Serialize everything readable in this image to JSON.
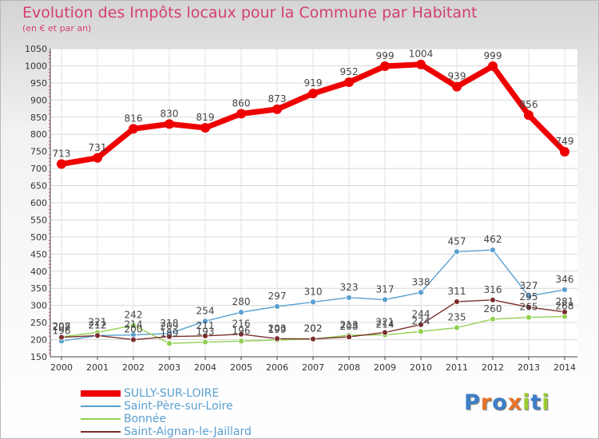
{
  "chart_data": {
    "type": "line",
    "title": "Evolution des Impôts locaux pour la Commune par Habitant",
    "subtitle": "(en € et par an)",
    "x": [
      "2000",
      "2001",
      "2002",
      "2003",
      "2004",
      "2005",
      "2006",
      "2007",
      "2008",
      "2009",
      "2010",
      "2011",
      "2012",
      "2013",
      "2014"
    ],
    "yticks": [
      150,
      200,
      250,
      300,
      350,
      400,
      450,
      500,
      550,
      600,
      650,
      700,
      750,
      800,
      850,
      900,
      950,
      1000,
      1050
    ],
    "ylim": [
      150,
      1050
    ],
    "grid": true,
    "series": [
      {
        "name": "SULLY-SUR-LOIRE",
        "color": "#ee0000",
        "values": [
          713,
          731,
          816,
          830,
          819,
          860,
          873,
          919,
          952,
          999,
          1004,
          939,
          999,
          856,
          749
        ],
        "labels": [
          "713",
          "731",
          "816",
          "830",
          "819",
          "860",
          "873",
          "919",
          "952",
          "999",
          "1004",
          "939",
          "999",
          "856",
          "749"
        ]
      },
      {
        "name": "Saint-Père-sur-Loire",
        "color": "#5a9fd0",
        "values": [
          196,
          212,
          214,
          218,
          254,
          280,
          297,
          310,
          323,
          317,
          338,
          457,
          462,
          327,
          346
        ],
        "labels": [
          "196",
          "212",
          "214",
          "218",
          "254",
          "280",
          "297",
          "310",
          "323",
          "317",
          "338",
          "457",
          "462",
          "327",
          "346"
        ]
      },
      {
        "name": "Bonnée",
        "color": "#92d050",
        "values": [
          208,
          221,
          242,
          189,
          193,
          196,
          199,
          202,
          213,
          214,
          224,
          235,
          260,
          265,
          268
        ],
        "labels": [
          "208",
          "221",
          "242",
          "189",
          "193",
          "196",
          "199",
          "202",
          "213",
          "214",
          "224",
          "235",
          "260",
          "265",
          "268"
        ]
      },
      {
        "name": "Saint-Aignan-le-Jaillard",
        "color": "#7a2e2e",
        "values": [
          207,
          212,
          200,
          209,
          211,
          216,
          203,
          202,
          208,
          221,
          244,
          311,
          316,
          295,
          281
        ],
        "labels": [
          "207",
          "212",
          "200",
          "209",
          "211",
          "216",
          "203",
          "202",
          "208",
          "221",
          "244",
          "311",
          "316",
          "295",
          "281"
        ]
      }
    ]
  },
  "legend": {
    "items": [
      {
        "label": "SULLY-SUR-LOIRE",
        "color": "#ee0000"
      },
      {
        "label": "Saint-Père-sur-Loire",
        "color": "#5a9fd0"
      },
      {
        "label": "Bonnée",
        "color": "#92d050"
      },
      {
        "label": "Saint-Aignan-le-Jaillard",
        "color": "#7a2e2e"
      }
    ]
  },
  "logo": {
    "letters": [
      "P",
      "r",
      "o",
      "x",
      "i",
      "t",
      "i"
    ],
    "colors": [
      "#3c7fc8",
      "#e8742a",
      "#3c7fc8",
      "#e8742a",
      "#9acd32",
      "#3c7fc8",
      "#9acd32"
    ]
  }
}
